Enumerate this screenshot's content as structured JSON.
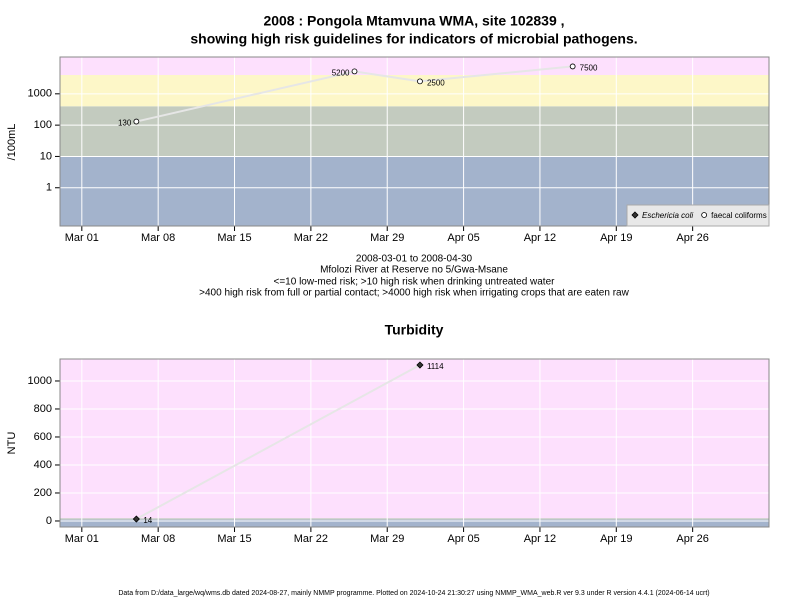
{
  "chart_data": [
    {
      "type": "line",
      "title": "2008 : Pongola Mtamvuna WMA, site 102839 ,",
      "subtitle": "showing high risk guidelines for indicators of microbial pathogens.",
      "ylabel": "/100mL",
      "log_scale": true,
      "x": [
        "2008-03-06",
        "2008-03-26",
        "2008-04-01",
        "2008-04-15"
      ],
      "series": [
        {
          "name": "Eschericia coli",
          "marker": "diamond",
          "color": "#333333",
          "values": [
            null,
            null,
            null,
            null
          ]
        },
        {
          "name": "faecal coliforms",
          "marker": "circle",
          "color": "#ffffff",
          "values": [
            130,
            5200,
            2500,
            7500
          ]
        }
      ],
      "xlim": [
        "2008-02-28",
        "2008-05-03"
      ],
      "xticks": [
        {
          "value": "2008-03-01",
          "label": "Mar 01"
        },
        {
          "value": "2008-03-08",
          "label": "Mar 08"
        },
        {
          "value": "2008-03-15",
          "label": "Mar 15"
        },
        {
          "value": "2008-03-22",
          "label": "Mar 22"
        },
        {
          "value": "2008-03-29",
          "label": "Mar 29"
        },
        {
          "value": "2008-04-05",
          "label": "Apr 05"
        },
        {
          "value": "2008-04-12",
          "label": "Apr 12"
        },
        {
          "value": "2008-04-19",
          "label": "Apr 19"
        },
        {
          "value": "2008-04-26",
          "label": "Apr 26"
        }
      ],
      "ylim": [
        0.06,
        15000
      ],
      "yticks": [
        1,
        10,
        100,
        1000
      ],
      "bands": [
        {
          "from": 0.06,
          "to": 10,
          "color": "#a3b3cc"
        },
        {
          "from": 10,
          "to": 400,
          "color": "#c3cbbf"
        },
        {
          "from": 400,
          "to": 4000,
          "color": "#fdf7c8"
        },
        {
          "from": 4000,
          "to": 15000,
          "color": "#fde0fd"
        }
      ],
      "grid": true,
      "legend": "bottom-right",
      "caption": [
        "2008-03-01 to 2008-04-30",
        "Mfolozi River at Reserve no 5/Gwa-Msane",
        "<=10 low-med risk; >10 high risk when drinking untreated water",
        ">400 high risk from full or partial contact; >4000 high risk when irrigating crops that are eaten raw"
      ]
    },
    {
      "type": "line",
      "title": "Turbidity",
      "ylabel": "NTU",
      "x": [
        "2008-03-06",
        "2008-04-01"
      ],
      "values": [
        14,
        1114
      ],
      "marker": "diamond",
      "color": "#333333",
      "xlim": [
        "2008-02-28",
        "2008-05-03"
      ],
      "xticks": [
        {
          "value": "2008-03-01",
          "label": "Mar 01"
        },
        {
          "value": "2008-03-08",
          "label": "Mar 08"
        },
        {
          "value": "2008-03-15",
          "label": "Mar 15"
        },
        {
          "value": "2008-03-22",
          "label": "Mar 22"
        },
        {
          "value": "2008-03-29",
          "label": "Mar 29"
        },
        {
          "value": "2008-04-05",
          "label": "Apr 05"
        },
        {
          "value": "2008-04-12",
          "label": "Apr 12"
        },
        {
          "value": "2008-04-19",
          "label": "Apr 19"
        },
        {
          "value": "2008-04-26",
          "label": "Apr 26"
        }
      ],
      "ylim": [
        -43,
        1157
      ],
      "yticks": [
        0,
        200,
        400,
        600,
        800,
        1000
      ],
      "bands": [
        {
          "from": -43,
          "to": 10,
          "color": "#a3b3cc"
        },
        {
          "from": 10,
          "to": 20,
          "color": "#c3cbbf"
        },
        {
          "from": 20,
          "to": 1157,
          "color": "#fde0fd"
        }
      ],
      "grid": true
    }
  ],
  "footer": "Data from D:/data_large/wq/wms.db dated 2024-08-27, mainly NMMP programme. Plotted on 2024-10-24 21:30:27 using NMMP_WMA_web.R ver 9.3 under R version 4.4.1 (2024-06-14 ucrt)"
}
